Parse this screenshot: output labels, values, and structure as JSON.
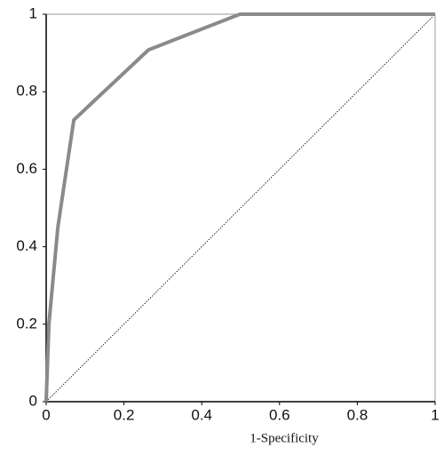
{
  "chart_data": {
    "type": "line",
    "x_label": "1-Specificity",
    "x": [
      0,
      0.007,
      0.03,
      0.071,
      0.263,
      0.498,
      1
    ],
    "values": [
      0,
      0.2,
      0.45,
      0.727,
      0.908,
      1,
      1
    ],
    "color": "#8a8a8a",
    "xlim": [
      0,
      1
    ],
    "xticks": [
      0,
      0.2,
      0.4,
      0.6,
      0.8,
      1
    ],
    "ylim": [
      0,
      1
    ],
    "yticks": [
      0,
      0.2,
      0.4,
      0.6,
      0.8,
      1
    ]
  }
}
